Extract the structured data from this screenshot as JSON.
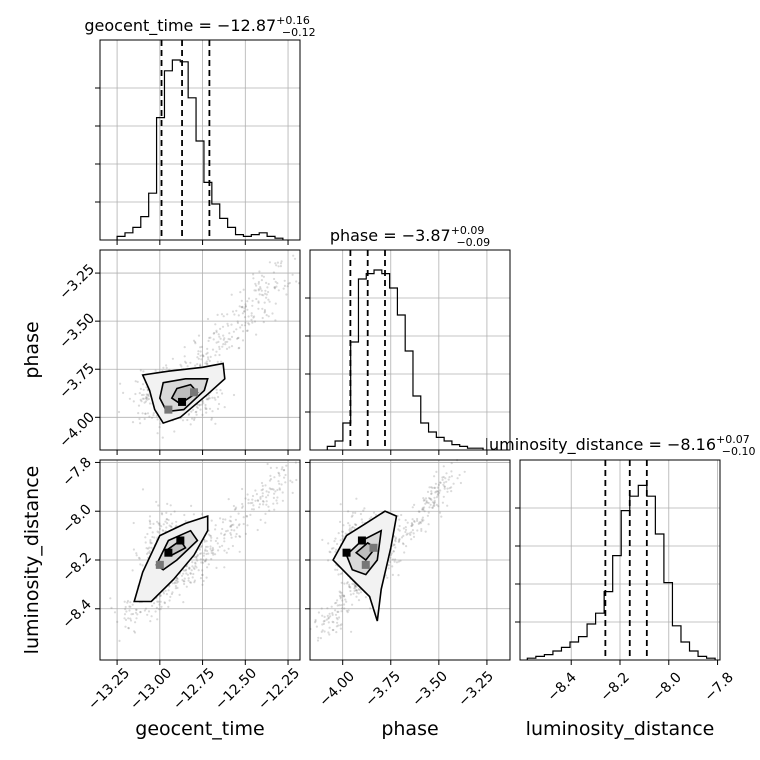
{
  "chart_data": {
    "type": "corner",
    "parameters": [
      "geocent_time",
      "phase",
      "luminosity_distance"
    ],
    "titles": [
      {
        "param": "geocent_time",
        "prefix": "geocent_time = −12.87",
        "plus": "+0.16",
        "minus": "−0.12"
      },
      {
        "param": "phase",
        "prefix": "phase = −3.87",
        "plus": "+0.09",
        "minus": "−0.09"
      },
      {
        "param": "luminosity_distance",
        "prefix": "luminosity_distance = −8.16",
        "plus": "+0.07",
        "minus": "−0.10"
      }
    ],
    "ranges": {
      "geocent_time": [
        -13.35,
        -12.18
      ],
      "phase": [
        -4.17,
        -3.13
      ],
      "luminosity_distance": [
        -8.61,
        -7.79
      ]
    },
    "ticks": {
      "geocent_time": [
        -13.25,
        -13.0,
        -12.75,
        -12.5,
        -12.25
      ],
      "phase": [
        -4.0,
        -3.75,
        -3.5,
        -3.25
      ],
      "luminosity_distance": [
        -8.4,
        -8.2,
        -8.0,
        -7.8
      ]
    },
    "tick_labels": {
      "geocent_time": [
        "−13.25",
        "−13.00",
        "−12.75",
        "−12.50",
        "−12.25"
      ],
      "phase_y": [
        "−3.25",
        "−3.50",
        "−3.75",
        "−4.00"
      ],
      "phase_x": [
        "−4.00",
        "−3.75",
        "−3.50",
        "−3.25"
      ],
      "luminosity_distance_y": [
        "−7.8",
        "−8.0",
        "−8.2",
        "−8.4"
      ],
      "luminosity_distance_x": [
        "−8.4",
        "−8.2",
        "−8.0",
        "−7.8"
      ]
    },
    "axis_labels": {
      "x": [
        "geocent_time",
        "phase",
        "luminosity_distance"
      ],
      "y": [
        "phase",
        "luminosity_distance"
      ]
    },
    "quantiles": {
      "geocent_time": [
        -12.99,
        -12.87,
        -12.71
      ],
      "phase": [
        -3.96,
        -3.87,
        -3.78
      ],
      "luminosity_distance": [
        -8.26,
        -8.16,
        -8.09
      ]
    },
    "histograms": {
      "geocent_time": [
        0.02,
        0.04,
        0.07,
        0.13,
        0.26,
        0.68,
        0.94,
        1.0,
        0.99,
        0.79,
        0.55,
        0.32,
        0.2,
        0.12,
        0.07,
        0.03,
        0.02,
        0.03,
        0.04,
        0.02,
        0.01
      ],
      "phase": [
        0.02,
        0.05,
        0.15,
        0.6,
        0.95,
        0.98,
        1.0,
        0.98,
        0.9,
        0.75,
        0.55,
        0.3,
        0.15,
        0.1,
        0.07,
        0.05,
        0.03,
        0.02,
        0.01,
        0.01
      ],
      "luminosity_distance": [
        0.01,
        0.02,
        0.03,
        0.05,
        0.07,
        0.1,
        0.13,
        0.2,
        0.26,
        0.38,
        0.58,
        0.83,
        0.91,
        0.97,
        0.91,
        0.7,
        0.43,
        0.19,
        0.1,
        0.05,
        0.02,
        0.01
      ]
    },
    "grid": true
  }
}
